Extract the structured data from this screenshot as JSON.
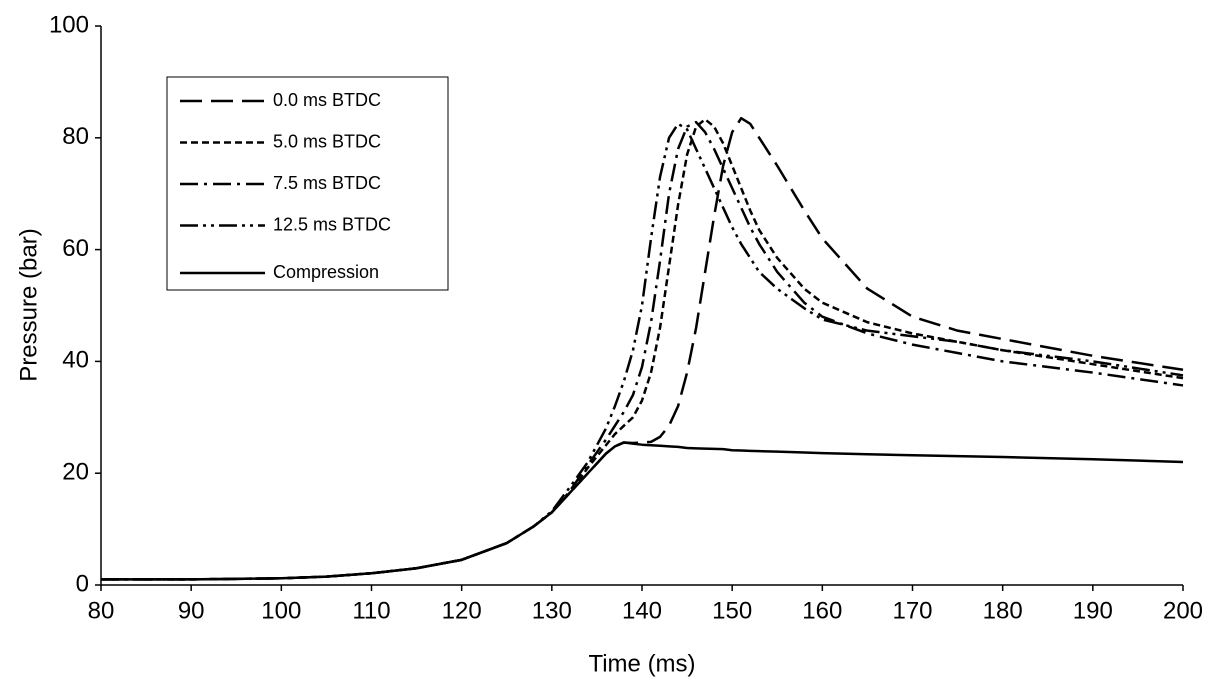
{
  "chart_data": {
    "type": "line",
    "x_label": "Time (ms)",
    "y_label": "Pressure (bar)",
    "x": [
      80,
      90,
      100,
      105,
      110,
      115,
      120,
      125,
      128,
      130,
      132,
      134,
      136,
      137,
      138,
      139,
      140,
      141,
      142,
      143,
      144,
      145,
      146,
      147,
      148,
      149,
      150,
      151,
      152,
      153,
      155,
      158,
      160,
      165,
      170,
      175,
      180,
      190,
      200
    ],
    "series": [
      {
        "name": "0.0 ms BTDC",
        "color": "#000000",
        "style": "long-dash",
        "values": [
          1.0,
          1.0,
          1.2,
          1.5,
          2.1,
          3.0,
          4.5,
          7.5,
          10.5,
          13.0,
          16.5,
          20,
          23.5,
          24.8,
          25.5,
          25.4,
          25.5,
          25.6,
          26.5,
          28.5,
          32,
          38,
          46,
          56,
          66,
          75,
          81,
          83.5,
          82.5,
          80,
          75,
          67,
          62,
          53,
          48,
          45.5,
          44,
          41,
          38.5
        ]
      },
      {
        "name": "5.0 ms BTDC",
        "color": "#000000",
        "style": "short-dash",
        "values": [
          1.0,
          1.0,
          1.2,
          1.5,
          2.1,
          3.0,
          4.5,
          7.5,
          10.5,
          13.0,
          16.5,
          21,
          25,
          27,
          28.5,
          30,
          33,
          38,
          46,
          57,
          68,
          77,
          82,
          83.3,
          82,
          79,
          75,
          71,
          67,
          63.5,
          58.5,
          53,
          50.5,
          47,
          45,
          43.5,
          42,
          39.5,
          37
        ]
      },
      {
        "name": "7.5 ms BTDC",
        "color": "#000000",
        "style": "dash-dot",
        "values": [
          1.0,
          1.0,
          1.2,
          1.5,
          2.1,
          3.0,
          4.5,
          7.5,
          10.5,
          13.0,
          16.8,
          21.5,
          26,
          28.5,
          31,
          34,
          39,
          47,
          58,
          70,
          78,
          82,
          82.8,
          81,
          78,
          74.5,
          71,
          67.5,
          64,
          61,
          56,
          50.5,
          48,
          45,
          43,
          41.5,
          40,
          38,
          35.7
        ]
      },
      {
        "name": "12.5 ms BTDC",
        "color": "#000000",
        "style": "dash-dot-dot",
        "values": [
          1.0,
          1.0,
          1.2,
          1.5,
          2.1,
          3.0,
          4.5,
          7.5,
          10.5,
          13.2,
          17.5,
          22,
          28,
          32,
          36.5,
          42,
          50,
          62,
          73,
          80,
          82.5,
          81.5,
          78,
          74.5,
          71,
          67.5,
          64,
          61,
          58.5,
          56,
          53,
          49.5,
          47.5,
          45.5,
          44.5,
          43.5,
          42,
          40,
          37.5
        ]
      },
      {
        "name": "Compression",
        "color": "#000000",
        "style": "solid",
        "values": [
          1.0,
          1.0,
          1.2,
          1.5,
          2.1,
          3.0,
          4.5,
          7.5,
          10.5,
          13.0,
          16.5,
          20,
          23.5,
          24.8,
          25.5,
          25.3,
          25.1,
          25.0,
          24.9,
          24.8,
          24.7,
          24.5,
          24.45,
          24.4,
          24.35,
          24.3,
          24.1,
          24.05,
          24.0,
          23.95,
          23.85,
          23.7,
          23.6,
          23.4,
          23.2,
          23.05,
          22.9,
          22.5,
          22.0
        ]
      }
    ],
    "xlim": [
      80,
      200
    ],
    "xticks": [
      80,
      90,
      100,
      110,
      120,
      130,
      140,
      150,
      160,
      170,
      180,
      190,
      200
    ],
    "ylim": [
      0,
      100
    ],
    "yticks": [
      0,
      20,
      40,
      60,
      80,
      100
    ],
    "grid": false,
    "legend": "upper left"
  }
}
